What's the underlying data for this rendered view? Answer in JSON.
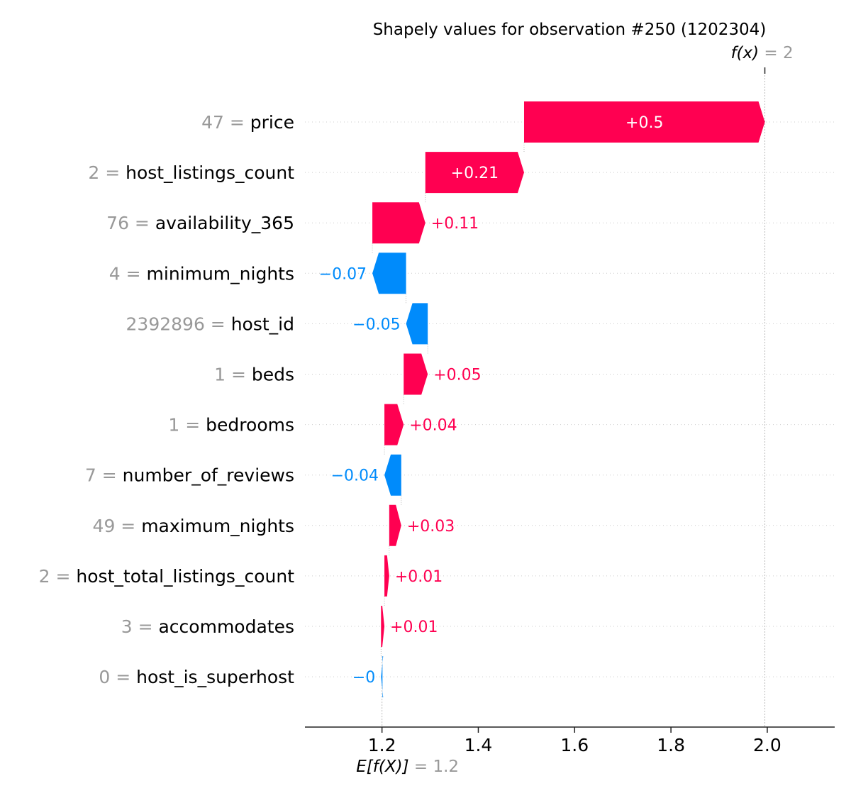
{
  "chart_data": {
    "type": "waterfall",
    "title": "Shapely values for observation #250 (1202304)",
    "fx": {
      "label": "f(x)",
      "value_text": "= 2",
      "value": 1.995
    },
    "efx": {
      "label": "E[f(X)]",
      "value_text": "= 1.2",
      "value": 1.2
    },
    "xlim": [
      1.04,
      2.14
    ],
    "xticks": [
      1.2,
      1.4,
      1.6,
      1.8,
      2.0
    ],
    "xtick_labels": [
      "1.2",
      "1.4",
      "1.6",
      "1.8",
      "2.0"
    ],
    "colors": {
      "positive": "#ff0051",
      "negative": "#008bfb",
      "muted": "#999999"
    },
    "features": [
      {
        "value": "47",
        "name": "price",
        "shap": 0.5,
        "start": 1.495,
        "end": 1.995,
        "label": "+0.5"
      },
      {
        "value": "2",
        "name": "host_listings_count",
        "shap": 0.21,
        "start": 1.29,
        "end": 1.495,
        "label": "+0.21"
      },
      {
        "value": "76",
        "name": "availability_365",
        "shap": 0.11,
        "start": 1.18,
        "end": 1.29,
        "label": "+0.11"
      },
      {
        "value": "4",
        "name": "minimum_nights",
        "shap": -0.07,
        "start": 1.25,
        "end": 1.18,
        "label": "−0.07"
      },
      {
        "value": "2392896",
        "name": "host_id",
        "shap": -0.05,
        "start": 1.295,
        "end": 1.25,
        "label": "−0.05"
      },
      {
        "value": "1",
        "name": "beds",
        "shap": 0.05,
        "start": 1.245,
        "end": 1.295,
        "label": "+0.05"
      },
      {
        "value": "1",
        "name": "bedrooms",
        "shap": 0.04,
        "start": 1.205,
        "end": 1.245,
        "label": "+0.04"
      },
      {
        "value": "7",
        "name": "number_of_reviews",
        "shap": -0.04,
        "start": 1.24,
        "end": 1.205,
        "label": "−0.04"
      },
      {
        "value": "49",
        "name": "maximum_nights",
        "shap": 0.03,
        "start": 1.215,
        "end": 1.24,
        "label": "+0.03"
      },
      {
        "value": "2",
        "name": "host_total_listings_count",
        "shap": 0.01,
        "start": 1.205,
        "end": 1.215,
        "label": "+0.01"
      },
      {
        "value": "3",
        "name": "accommodates",
        "shap": 0.01,
        "start": 1.198,
        "end": 1.205,
        "label": "+0.01"
      },
      {
        "value": "0",
        "name": "host_is_superhost",
        "shap": -0.003,
        "start": 1.201,
        "end": 1.198,
        "label": "−0"
      }
    ]
  }
}
